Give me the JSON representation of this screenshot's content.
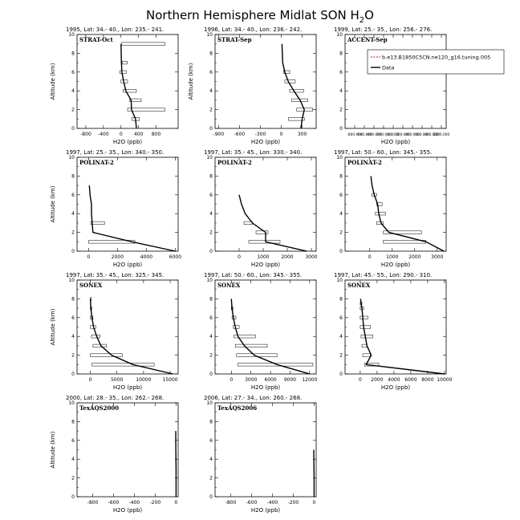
{
  "figure": {
    "title_main": "Northern Hemisphere Midlat SON H",
    "title_sub": "2",
    "title_end": "O"
  },
  "legend": {
    "entries": [
      {
        "label": "b.e13.B1850C5CN.ne120_g16.tuning.005",
        "color": "#ff0000",
        "style": "dashed"
      },
      {
        "label": "Data",
        "color": "#000000",
        "style": "solid"
      }
    ]
  },
  "chart_data": [
    {
      "type": "line",
      "title": "1995, Lat: 34.- 40., Lon: 235.- 241.",
      "label": "STRAT-Oct",
      "xlabel": "H2O (ppb)",
      "ylabel": "Altitude (km)",
      "xlim": [
        -1000,
        1300
      ],
      "ylim": [
        0,
        10
      ],
      "xticks": [
        "-800",
        "-400",
        "0",
        "400",
        "800"
      ],
      "xtick_values": [
        -800,
        -400,
        0,
        400,
        800
      ],
      "yticks": [
        "0",
        "2",
        "4",
        "6",
        "8",
        "10"
      ],
      "ytick_values": [
        0,
        2,
        4,
        6,
        8,
        10
      ],
      "series": [
        {
          "x": [
            350,
            330,
            240,
            230,
            110,
            60,
            20,
            10,
            0
          ],
          "y": [
            0,
            1,
            2,
            3,
            4,
            5,
            6,
            7,
            9
          ]
        }
      ],
      "ranges": [
        [
          10,
          1000,
          9
        ],
        [
          30,
          140,
          7
        ],
        [
          -30,
          120,
          6
        ],
        [
          0,
          150,
          5
        ],
        [
          50,
          350,
          4
        ],
        [
          200,
          460,
          3
        ],
        [
          150,
          1000,
          2
        ],
        [
          250,
          420,
          1
        ]
      ]
    },
    {
      "type": "line",
      "title": "1996, Lat: 34.- 40., Lon: 236.- 242.",
      "label": "STRAT-Sep",
      "xlabel": "H2O (ppb)",
      "ylabel": "Altitude (km)",
      "xlim": [
        -950,
        500
      ],
      "ylim": [
        0,
        10
      ],
      "xticks": [
        "-900",
        "-600",
        "-300",
        "0",
        "300"
      ],
      "xtick_values": [
        -900,
        -600,
        -300,
        0,
        300
      ],
      "yticks": [
        "0",
        "2",
        "4",
        "6",
        "8",
        "10"
      ],
      "ytick_values": [
        0,
        2,
        4,
        6,
        8,
        10
      ],
      "series": [
        {
          "x": [
            280,
            300,
            330,
            270,
            180,
            100,
            50,
            20,
            10
          ],
          "y": [
            0,
            1,
            2,
            3,
            4,
            5,
            6,
            7,
            9
          ]
        }
      ],
      "ranges": [
        [
          30,
          120,
          6
        ],
        [
          50,
          200,
          5
        ],
        [
          120,
          320,
          4
        ],
        [
          150,
          380,
          3
        ],
        [
          220,
          450,
          2
        ],
        [
          100,
          330,
          1
        ]
      ]
    },
    {
      "type": "line",
      "title": "1999, Lat: 25.- 35., Lon: 256.- 276.",
      "label": "ACCENT-Sep",
      "xlabel": "H2O (ppb)",
      "ylabel": "",
      "xlim": [
        -1000000,
        1100000
      ],
      "ylim": [
        0,
        10
      ],
      "xticks": [
        "-800.000",
        "-600.000",
        "-400.000",
        "-200.000",
        "0.0000",
        "200.000",
        "400.000",
        "600.000",
        "800.000",
        "1000.000"
      ],
      "xtick_values": [
        -800000,
        -600000,
        -400000,
        -200000,
        0,
        200000,
        400000,
        600000,
        800000,
        1000000
      ],
      "yticks": [
        "0",
        "2",
        "4",
        "6",
        "8",
        "10"
      ],
      "ytick_values": [
        0,
        2,
        4,
        6,
        8,
        10
      ],
      "series": [],
      "ranges": []
    },
    {
      "type": "line",
      "title": "1997, Lat: 25.- 35., Lon: 340.- 350.",
      "label": "POLINAT-2",
      "xlabel": "H2O (ppb)",
      "ylabel": "Altitude (km)",
      "xlim": [
        -800,
        6200
      ],
      "ylim": [
        0,
        10
      ],
      "xticks": [
        "0",
        "2000",
        "4000",
        "6000"
      ],
      "xtick_values": [
        0,
        2000,
        4000,
        6000
      ],
      "yticks": [
        "0",
        "2",
        "4",
        "6",
        "8",
        "10"
      ],
      "ytick_values": [
        0,
        2,
        4,
        6,
        8,
        10
      ],
      "series": [
        {
          "x": [
            6000,
            3000,
            300,
            250,
            200,
            200,
            100,
            50
          ],
          "y": [
            0,
            1,
            2,
            3,
            4,
            5,
            6,
            7
          ]
        }
      ],
      "ranges": [
        [
          0,
          3200,
          1
        ],
        [
          150,
          1100,
          3
        ]
      ]
    },
    {
      "type": "line",
      "title": "1997, Lat: 35.- 45., Lon: 330.- 340.",
      "label": "POLINAT-2",
      "xlabel": "H2O (ppb)",
      "ylabel": "",
      "xlim": [
        -1000,
        3200
      ],
      "ylim": [
        0,
        10
      ],
      "xticks": [
        "0",
        "1000",
        "2000",
        "3000"
      ],
      "xtick_values": [
        0,
        1000,
        2000,
        3000
      ],
      "yticks": [
        "0",
        "2",
        "4",
        "6",
        "8",
        "10"
      ],
      "ytick_values": [
        0,
        2,
        4,
        6,
        8,
        10
      ],
      "series": [
        {
          "x": [
            2800,
            1100,
            1100,
            550,
            250,
            100,
            0
          ],
          "y": [
            0,
            1,
            2,
            3,
            4,
            5,
            6
          ]
        }
      ],
      "ranges": [
        [
          400,
          1700,
          1
        ],
        [
          700,
          1200,
          2
        ],
        [
          200,
          550,
          3
        ]
      ]
    },
    {
      "type": "line",
      "title": "1997, Lat: 50.- 60., Lon: 345.- 355.",
      "label": "POLINAT-2",
      "xlabel": "H2O (ppb)",
      "ylabel": "",
      "xlim": [
        -1100,
        3400
      ],
      "ylim": [
        0,
        10
      ],
      "xticks": [
        "0",
        "1000",
        "2000",
        "3000"
      ],
      "xtick_values": [
        0,
        1000,
        2000,
        3000
      ],
      "yticks": [
        "0",
        "2",
        "4",
        "6",
        "8",
        "10"
      ],
      "ytick_values": [
        0,
        2,
        4,
        6,
        8,
        10
      ],
      "series": [
        {
          "x": [
            3300,
            2500,
            850,
            500,
            400,
            350,
            200,
            100,
            50
          ],
          "y": [
            0,
            1,
            2,
            3,
            4,
            5,
            6,
            7,
            8
          ]
        }
      ],
      "ranges": [
        [
          600,
          2500,
          1
        ],
        [
          600,
          2300,
          2
        ],
        [
          300,
          600,
          3
        ],
        [
          250,
          700,
          4
        ],
        [
          300,
          550,
          5
        ],
        [
          100,
          300,
          6
        ]
      ]
    },
    {
      "type": "line",
      "title": "1997, Lat: 35.- 45., Lon: 325.- 345.",
      "label": "SONEX",
      "xlabel": "H2O (ppb)",
      "ylabel": "Altitude (km)",
      "xlim": [
        -2500,
        16500
      ],
      "ylim": [
        0,
        10
      ],
      "xticks": [
        "0",
        "5000",
        "10000",
        "15000"
      ],
      "xtick_values": [
        0,
        5000,
        10000,
        15000
      ],
      "yticks": [
        "0",
        "2",
        "4",
        "6",
        "8",
        "10"
      ],
      "ytick_values": [
        0,
        2,
        4,
        6,
        8,
        10
      ],
      "series": [
        {
          "x": [
            15500,
            8000,
            4000,
            2000,
            1200,
            600,
            300,
            100,
            0
          ],
          "y": [
            0,
            1,
            2,
            3,
            4,
            5,
            6,
            7,
            8
          ]
        }
      ],
      "ranges": [
        [
          300,
          12000,
          1
        ],
        [
          0,
          6000,
          2
        ],
        [
          500,
          3000,
          3
        ],
        [
          200,
          1800,
          4
        ],
        [
          0,
          1000,
          5
        ],
        [
          0,
          500,
          6
        ],
        [
          0,
          300,
          7
        ],
        [
          0,
          200,
          8
        ]
      ]
    },
    {
      "type": "line",
      "title": "1997, Lat: 50.- 60., Lon: 345.- 355.",
      "label": "SONEX",
      "xlabel": "H2O (ppb)",
      "ylabel": "",
      "xlim": [
        -2500,
        13000
      ],
      "ylim": [
        0,
        10
      ],
      "xticks": [
        "0",
        "3000",
        "6000",
        "9000",
        "12000"
      ],
      "xtick_values": [
        0,
        3000,
        6000,
        9000,
        12000
      ],
      "yticks": [
        "0",
        "2",
        "4",
        "6",
        "8",
        "10"
      ],
      "ytick_values": [
        0,
        2,
        4,
        6,
        8,
        10
      ],
      "series": [
        {
          "x": [
            12000,
            7000,
            3500,
            2000,
            1000,
            600,
            300,
            100,
            0
          ],
          "y": [
            0,
            1,
            2,
            3,
            4,
            5,
            6,
            7,
            8
          ]
        }
      ],
      "ranges": [
        [
          1000,
          12500,
          1
        ],
        [
          800,
          7000,
          2
        ],
        [
          600,
          5500,
          3
        ],
        [
          400,
          3700,
          4
        ],
        [
          300,
          1200,
          5
        ],
        [
          100,
          700,
          6
        ],
        [
          0,
          250,
          7
        ]
      ]
    },
    {
      "type": "line",
      "title": "1997, Lat: 45.- 55., Lon: 290.- 310.",
      "label": "SONEX",
      "xlabel": "H2O (ppb)",
      "ylabel": "",
      "xlim": [
        -1800,
        10200
      ],
      "ylim": [
        0,
        10
      ],
      "xticks": [
        "0",
        "2000",
        "4000",
        "6000",
        "8000",
        "10000"
      ],
      "xtick_values": [
        0,
        2000,
        4000,
        6000,
        8000,
        10000
      ],
      "yticks": [
        "0",
        "2",
        "4",
        "6",
        "8",
        "10"
      ],
      "ytick_values": [
        0,
        2,
        4,
        6,
        8,
        10
      ],
      "series": [
        {
          "x": [
            10000,
            700,
            1300,
            800,
            600,
            400,
            300,
            200,
            100,
            50
          ],
          "y": [
            0,
            1,
            2,
            3,
            4,
            5,
            6,
            7,
            7.5,
            8
          ]
        }
      ],
      "ranges": [
        [
          500,
          2200,
          1
        ],
        [
          300,
          1200,
          2
        ],
        [
          200,
          800,
          3
        ],
        [
          100,
          1500,
          4
        ],
        [
          0,
          1200,
          5
        ],
        [
          0,
          900,
          6
        ],
        [
          0,
          400,
          7
        ],
        [
          0,
          200,
          7.5
        ]
      ]
    },
    {
      "type": "line",
      "title": "2000, Lat: 28.- 35., Lon: 262.- 268.",
      "label": "TexAQS2000",
      "xlabel": "H2O (ppb)",
      "ylabel": "Altitude (km)",
      "xlim": [
        -950,
        20
      ],
      "ylim": [
        0,
        10
      ],
      "xticks": [
        "-800",
        "-600",
        "-400",
        "-200",
        "0"
      ],
      "xtick_values": [
        -800,
        -600,
        -400,
        -200,
        0
      ],
      "yticks": [
        "0",
        "2",
        "4",
        "6",
        "8",
        "10"
      ],
      "ytick_values": [
        0,
        2,
        4,
        6,
        8,
        10
      ],
      "series": [
        {
          "x": [
            0,
            0,
            -2,
            -3
          ],
          "y": [
            0,
            3,
            5,
            7
          ]
        }
      ],
      "ranges": []
    },
    {
      "type": "line",
      "title": "2006, Lat: 27.- 34., Lon: 260.- 268.",
      "label": "TexAQS2006",
      "xlabel": "H2O (ppb)",
      "ylabel": "",
      "xlim": [
        -950,
        20
      ],
      "ylim": [
        0,
        10
      ],
      "xticks": [
        "-800",
        "-600",
        "-400",
        "-200",
        "0"
      ],
      "xtick_values": [
        -800,
        -600,
        -400,
        -200,
        0
      ],
      "yticks": [
        "0",
        "2",
        "4",
        "6",
        "8",
        "10"
      ],
      "ytick_values": [
        0,
        2,
        4,
        6,
        8,
        10
      ],
      "series": [
        {
          "x": [
            0,
            0,
            -2,
            -3
          ],
          "y": [
            0,
            2,
            4,
            5
          ]
        }
      ],
      "ranges": []
    }
  ]
}
